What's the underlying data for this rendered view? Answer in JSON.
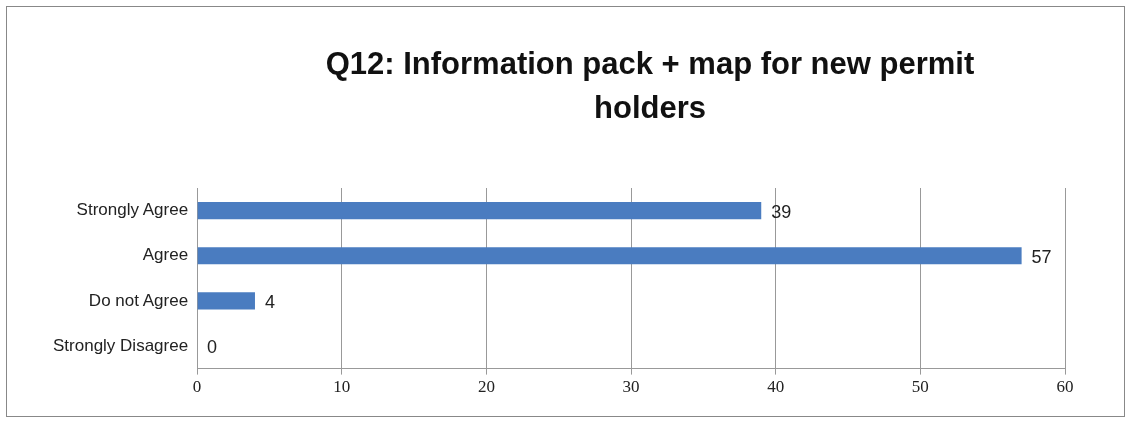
{
  "chart_data": {
    "type": "bar",
    "orientation": "horizontal",
    "title": "Q12: Information pack + map for new permit holders",
    "categories": [
      "Strongly Agree",
      "Agree",
      "Do not Agree",
      "Strongly Disagree"
    ],
    "values": [
      39,
      57,
      4,
      0
    ],
    "color": "#4a7cc0",
    "xlim": [
      0,
      60
    ],
    "xticks": [
      0,
      10,
      20,
      30,
      40,
      50,
      60
    ],
    "grid": "x",
    "legend": false,
    "data_labels": true
  }
}
